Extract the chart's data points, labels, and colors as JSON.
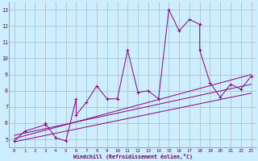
{
  "xlabel": "Windchill (Refroidissement éolien,°C)",
  "bg_color": "#cceeff",
  "grid_color": "#aabbbb",
  "line_color": "#880088",
  "text_color": "#660066",
  "xlim": [
    -0.5,
    23.5
  ],
  "ylim": [
    4.5,
    13.5
  ],
  "xticks": [
    0,
    1,
    2,
    3,
    4,
    5,
    6,
    7,
    8,
    9,
    10,
    11,
    12,
    13,
    14,
    15,
    16,
    17,
    18,
    19,
    20,
    21,
    22,
    23
  ],
  "yticks": [
    5,
    6,
    7,
    8,
    9,
    10,
    11,
    12,
    13
  ],
  "series": [
    [
      0,
      4.9
    ],
    [
      1,
      5.5
    ],
    [
      3,
      5.9
    ],
    [
      3,
      6.0
    ],
    [
      4,
      5.1
    ],
    [
      5,
      4.9
    ],
    [
      6,
      7.5
    ],
    [
      6,
      6.5
    ],
    [
      7,
      7.3
    ],
    [
      8,
      8.3
    ],
    [
      9,
      7.5
    ],
    [
      10,
      7.5
    ],
    [
      11,
      10.5
    ],
    [
      12,
      7.9
    ],
    [
      13,
      8.0
    ],
    [
      14,
      7.5
    ],
    [
      15,
      13.0
    ],
    [
      16,
      11.7
    ],
    [
      17,
      12.4
    ],
    [
      18,
      12.1
    ],
    [
      18,
      10.5
    ],
    [
      19,
      8.5
    ],
    [
      20,
      7.6
    ],
    [
      21,
      8.4
    ],
    [
      22,
      8.1
    ],
    [
      23,
      8.9
    ]
  ],
  "line2": [
    [
      0,
      5.05
    ],
    [
      23,
      9.0
    ]
  ],
  "line3": [
    [
      0,
      5.25
    ],
    [
      23,
      8.4
    ]
  ],
  "line4": [
    [
      0,
      4.85
    ],
    [
      23,
      7.85
    ]
  ]
}
